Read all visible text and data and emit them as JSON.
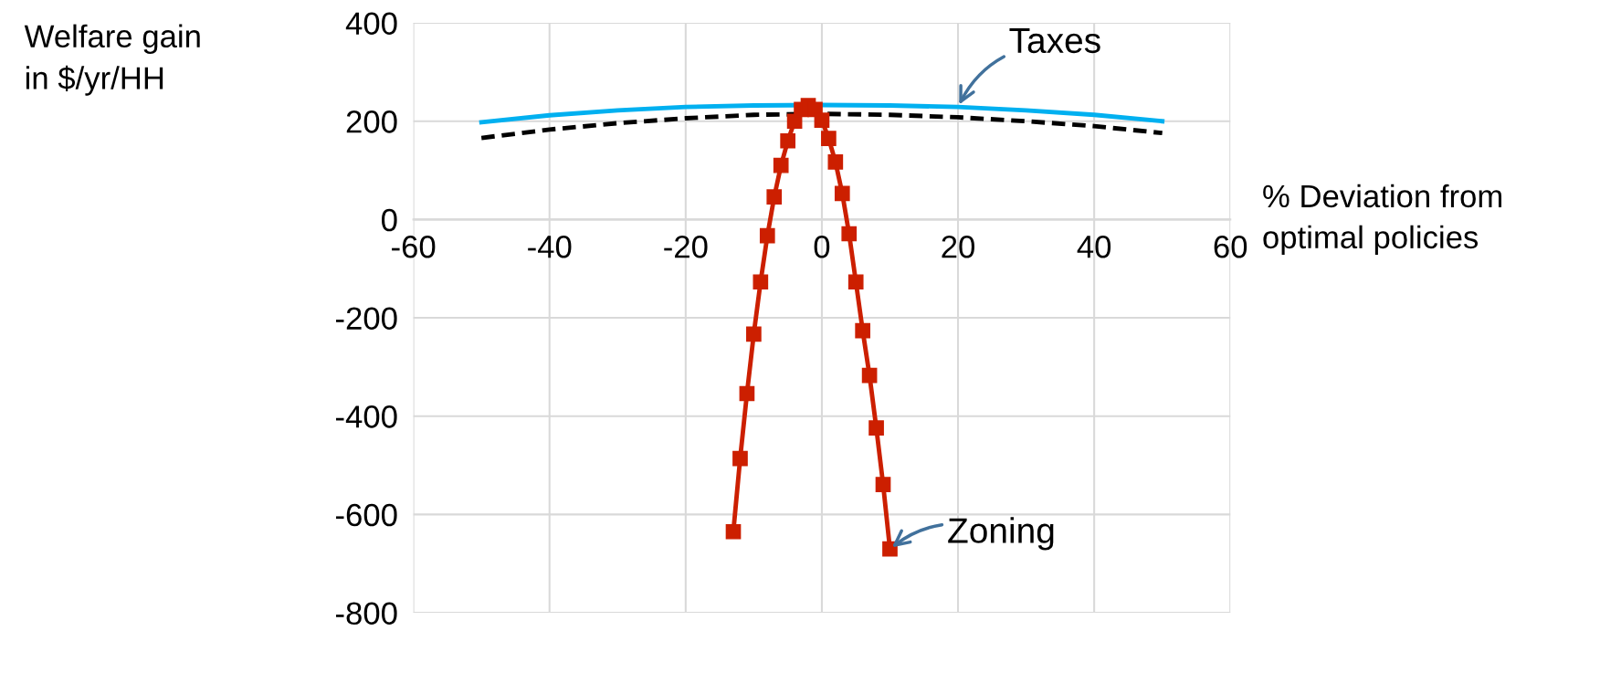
{
  "chart_data": {
    "type": "line",
    "ylabel": "Welfare gain\nin $/yr/HH",
    "xlabel": "% Deviation from\noptimal policies",
    "xlim": [
      -60,
      60
    ],
    "xticks": [
      -60,
      -40,
      -20,
      0,
      20,
      40,
      60
    ],
    "ylim": [
      -800,
      400
    ],
    "yticks": [
      -800,
      -600,
      -400,
      -200,
      0,
      200,
      400
    ],
    "grid": true,
    "legend": false,
    "series": [
      {
        "color": "#00b0f0",
        "line_style": "solid",
        "marker": "none",
        "x": [
          -50,
          -40,
          -30,
          -20,
          -10,
          0,
          10,
          20,
          30,
          40,
          50
        ],
        "values": [
          198,
          212,
          222,
          229,
          232,
          233,
          232,
          229,
          222,
          213,
          200
        ]
      },
      {
        "color": "#000000",
        "line_style": "dashed",
        "marker": "none",
        "x": [
          -50,
          -40,
          -30,
          -20,
          -10,
          0,
          10,
          20,
          30,
          40,
          50
        ],
        "values": [
          166,
          183,
          196,
          206,
          213,
          215,
          213,
          208,
          200,
          190,
          176
        ]
      },
      {
        "color": "#cc1f00",
        "line_style": "solid",
        "marker": "square",
        "x": [
          -13,
          -12,
          -11,
          -10,
          -9,
          -8,
          -7,
          -6,
          -5,
          -4,
          -3,
          -2,
          -1,
          0,
          1,
          2,
          3,
          4,
          5,
          6,
          7,
          8,
          9,
          10
        ],
        "values": [
          -635,
          -486,
          -354,
          -233,
          -127,
          -33,
          46,
          110,
          160,
          200,
          224,
          232,
          224,
          202,
          165,
          117,
          53,
          -29,
          -127,
          -226,
          -317,
          -424,
          -539,
          -670
        ]
      }
    ],
    "annotations": [
      {
        "text": "Taxes",
        "x": 20,
        "y": 229
      },
      {
        "text": "Zoning",
        "x": 10,
        "y": -670
      }
    ]
  }
}
